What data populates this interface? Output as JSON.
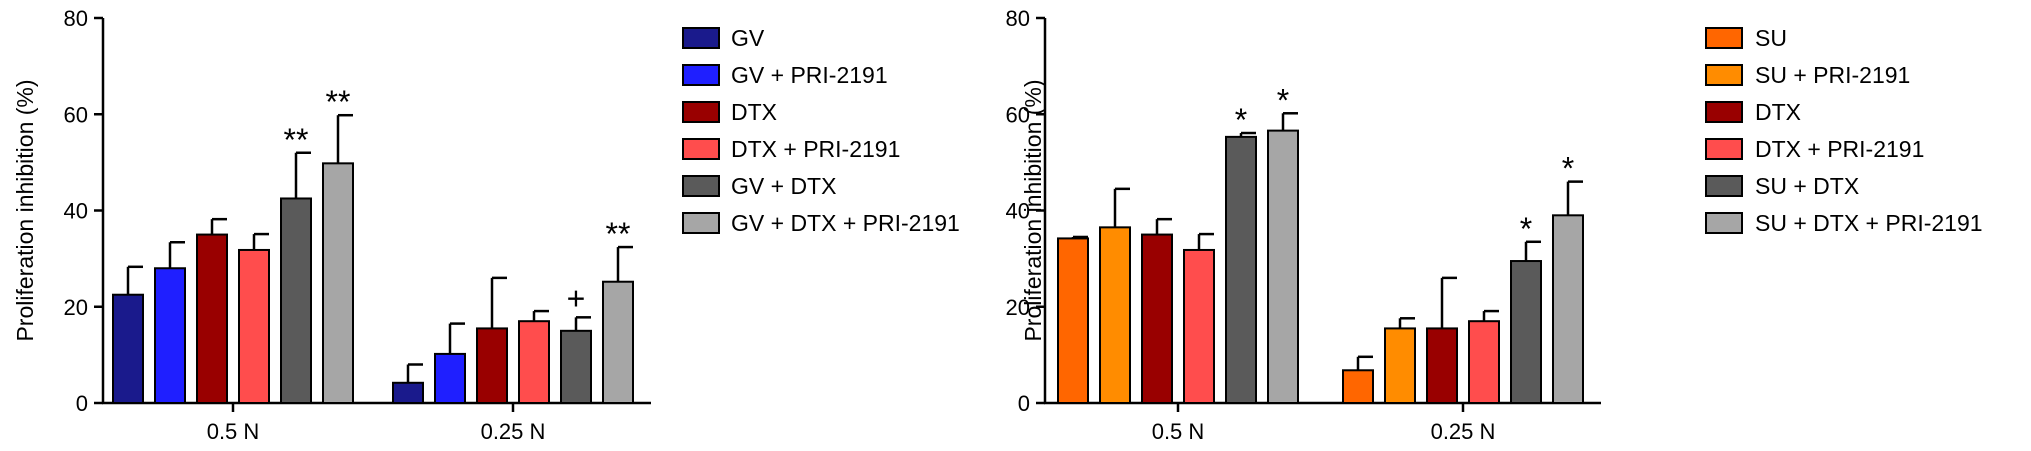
{
  "chart_data": [
    {
      "type": "bar",
      "title": "",
      "xlabel": "",
      "ylabel": "Proliferation inhibition (%)",
      "ylim": [
        0,
        80
      ],
      "yticks": [
        "0",
        "20",
        "40",
        "60",
        "80"
      ],
      "categories": [
        "0.5 N",
        "0.25 N"
      ],
      "legend_position": "right",
      "series": [
        {
          "name": "GV",
          "color": "#1a1a8c",
          "values": [
            22.5,
            4.2
          ],
          "errors": [
            5.8,
            3.8
          ],
          "annotations": [
            "",
            ""
          ]
        },
        {
          "name": "GV + PRI-2191",
          "color": "#1f1fff",
          "values": [
            28.0,
            10.2
          ],
          "errors": [
            5.4,
            6.3
          ],
          "annotations": [
            "",
            ""
          ]
        },
        {
          "name": "DTX",
          "color": "#990000",
          "values": [
            35.0,
            15.5
          ],
          "errors": [
            3.2,
            10.5
          ],
          "annotations": [
            "",
            ""
          ]
        },
        {
          "name": "DTX + PRI-2191",
          "color": "#ff4d4d",
          "values": [
            31.8,
            17.0
          ],
          "errors": [
            3.3,
            2.1
          ],
          "annotations": [
            "",
            ""
          ]
        },
        {
          "name": "GV + DTX",
          "color": "#5a5a5a",
          "values": [
            42.5,
            15.0
          ],
          "errors": [
            9.5,
            2.8
          ],
          "annotations": [
            "**",
            "+"
          ]
        },
        {
          "name": "GV + DTX + PRI-2191",
          "color": "#a6a6a6",
          "values": [
            49.8,
            25.2
          ],
          "errors": [
            10.0,
            7.2
          ],
          "annotations": [
            "**",
            "**"
          ]
        }
      ]
    },
    {
      "type": "bar",
      "title": "",
      "xlabel": "",
      "ylabel": "Proliferation inhibition (%)",
      "ylim": [
        0,
        80
      ],
      "yticks": [
        "0",
        "20",
        "40",
        "60",
        "80"
      ],
      "categories": [
        "0.5 N",
        "0.25 N"
      ],
      "legend_position": "right",
      "series": [
        {
          "name": "SU",
          "color": "#ff6600",
          "values": [
            34.2,
            6.8
          ],
          "errors": [
            0.3,
            2.8
          ],
          "annotations": [
            "",
            ""
          ]
        },
        {
          "name": "SU + PRI-2191",
          "color": "#ff8c00",
          "values": [
            36.5,
            15.5
          ],
          "errors": [
            8.0,
            2.1
          ],
          "annotations": [
            "",
            ""
          ]
        },
        {
          "name": "DTX",
          "color": "#990000",
          "values": [
            35.0,
            15.5
          ],
          "errors": [
            3.2,
            10.5
          ],
          "annotations": [
            "",
            ""
          ]
        },
        {
          "name": "DTX + PRI-2191",
          "color": "#ff4d4d",
          "values": [
            31.8,
            17.0
          ],
          "errors": [
            3.3,
            2.1
          ],
          "annotations": [
            "",
            ""
          ]
        },
        {
          "name": "SU + DTX",
          "color": "#5a5a5a",
          "values": [
            55.3,
            29.5
          ],
          "errors": [
            0.8,
            4.0
          ],
          "annotations": [
            "*",
            "*"
          ]
        },
        {
          "name": "SU + DTX + PRI-2191",
          "color": "#a6a6a6",
          "values": [
            56.6,
            39.0
          ],
          "errors": [
            3.6,
            7.0
          ],
          "annotations": [
            "*",
            "*"
          ]
        }
      ]
    }
  ]
}
